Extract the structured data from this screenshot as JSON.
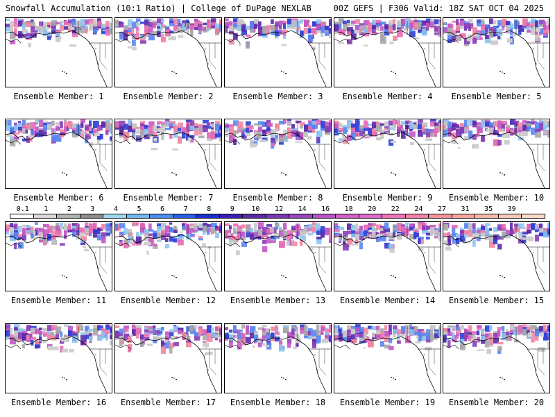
{
  "header": {
    "left_title": "Snowfall Accumulation (10:1 Ratio) | College of DuPage NEXLAB",
    "right_title": "00Z GEFS | F306 Valid: 18Z SAT OCT 04 2025"
  },
  "caption_prefix": "Ensemble Member: ",
  "members": [
    {
      "label": "Ensemble Member: 1"
    },
    {
      "label": "Ensemble Member: 2"
    },
    {
      "label": "Ensemble Member: 3"
    },
    {
      "label": "Ensemble Member: 4"
    },
    {
      "label": "Ensemble Member: 5"
    },
    {
      "label": "Ensemble Member: 6"
    },
    {
      "label": "Ensemble Member: 7"
    },
    {
      "label": "Ensemble Member: 8"
    },
    {
      "label": "Ensemble Member: 9"
    },
    {
      "label": "Ensemble Member: 10"
    },
    {
      "label": "Ensemble Member: 11"
    },
    {
      "label": "Ensemble Member: 12"
    },
    {
      "label": "Ensemble Member: 13"
    },
    {
      "label": "Ensemble Member: 14"
    },
    {
      "label": "Ensemble Member: 15"
    },
    {
      "label": "Ensemble Member: 16"
    },
    {
      "label": "Ensemble Member: 17"
    },
    {
      "label": "Ensemble Member: 18"
    },
    {
      "label": "Ensemble Member: 19"
    },
    {
      "label": "Ensemble Member: 20"
    }
  ],
  "colorbar": {
    "labels": [
      "0.1",
      "1",
      "2",
      "3",
      "4",
      "5",
      "6",
      "7",
      "8",
      "9",
      "10",
      "12",
      "14",
      "16",
      "18",
      "20",
      "22",
      "24",
      "27",
      "31",
      "35",
      "39"
    ],
    "colors": [
      "#ffffff",
      "#d9d9d9",
      "#b3b3b3",
      "#8c8c8c",
      "#9ed9f2",
      "#74b8ee",
      "#4b8ef0",
      "#2a5fe6",
      "#1e2fd0",
      "#3b1fb8",
      "#5b2aa8",
      "#7a37b2",
      "#9a46bc",
      "#b855c4",
      "#d05fc8",
      "#e06ac8",
      "#ee76b8",
      "#f584a6",
      "#f5939a",
      "#f6a59c",
      "#f7b8a8",
      "#f8caba",
      "#f9dccc"
    ]
  }
}
